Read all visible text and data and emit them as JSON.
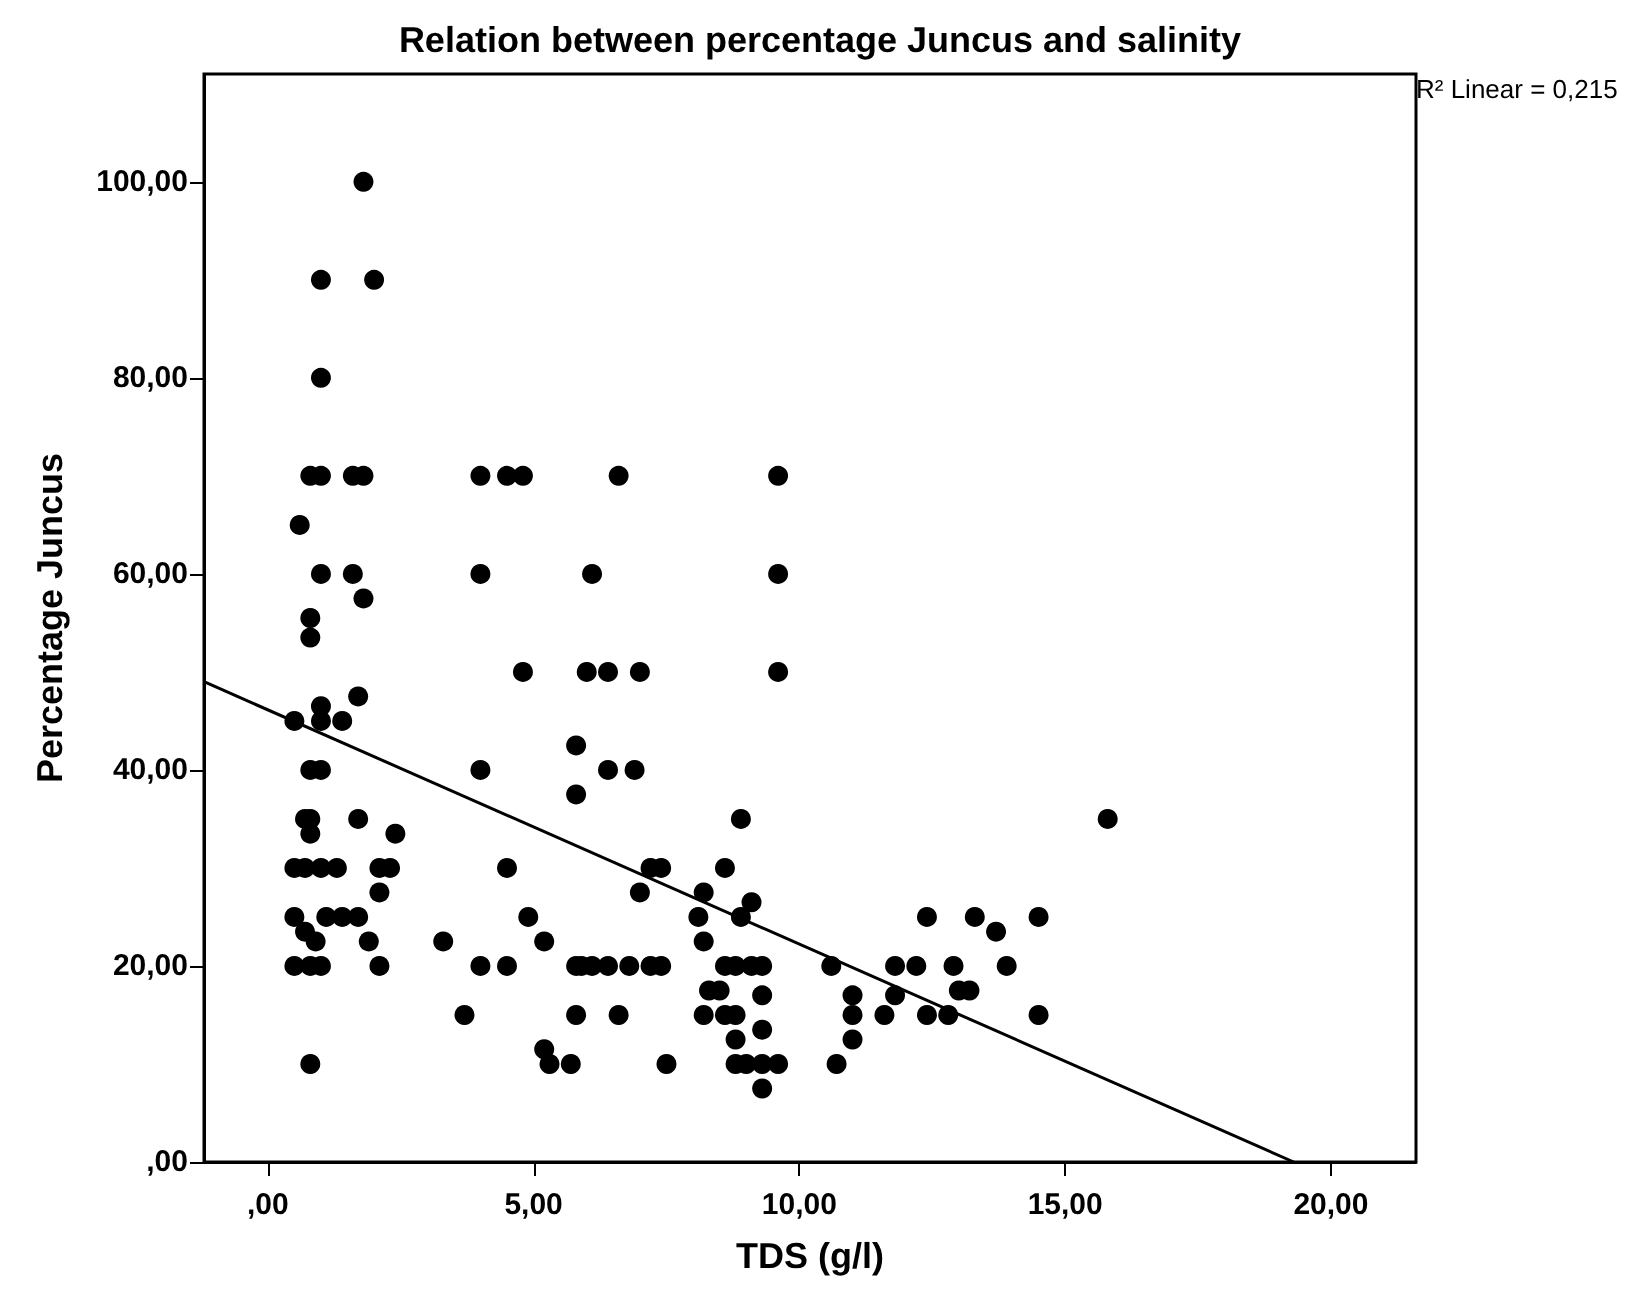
{
  "chart_data": {
    "type": "scatter",
    "title": "Relation between percentage Juncus and salinity",
    "xlabel": "TDS (g/l)",
    "ylabel": "Percentage Juncus",
    "annotations": [
      "R² Linear = 0,215"
    ],
    "xlim": [
      -1.2,
      21.6
    ],
    "ylim": [
      0,
      111
    ],
    "xticks": [
      {
        "value": 0,
        "label": ",00"
      },
      {
        "value": 5,
        "label": "5,00"
      },
      {
        "value": 10,
        "label": "10,00"
      },
      {
        "value": 15,
        "label": "15,00"
      },
      {
        "value": 20,
        "label": "20,00"
      }
    ],
    "yticks": [
      {
        "value": 0,
        "label": ",00"
      },
      {
        "value": 20,
        "label": "20,00"
      },
      {
        "value": 40,
        "label": "40,00"
      },
      {
        "value": 60,
        "label": "60,00"
      },
      {
        "value": 80,
        "label": "80,00"
      },
      {
        "value": 100,
        "label": "100,00"
      }
    ],
    "grid": false,
    "series": [
      {
        "color": "#000000",
        "marker": "circle",
        "x": [
          1.8,
          1.0,
          2.0,
          1.0,
          0.8,
          1.0,
          1.6,
          1.8,
          4.0,
          4.5,
          4.8,
          6.6,
          9.6,
          0.6,
          1.0,
          1.6,
          4.0,
          6.1,
          9.6,
          1.8,
          0.8,
          0.8,
          4.8,
          6.0,
          6.4,
          7.0,
          9.6,
          1.0,
          1.7,
          0.5,
          1.0,
          1.4,
          5.8,
          5.8,
          6.4,
          6.9,
          0.8,
          1.0,
          4.0,
          0.7,
          0.8,
          1.7,
          0.8,
          2.4,
          8.9,
          0.5,
          0.7,
          1.0,
          1.3,
          2.1,
          2.3,
          4.5,
          7.2,
          7.4,
          8.6,
          2.1,
          7.0,
          8.2,
          9.1,
          8.1,
          8.9,
          8.2,
          12.4,
          0.5,
          1.1,
          1.4,
          1.7,
          4.9,
          0.7,
          0.9,
          1.9,
          3.3,
          5.2,
          0.5,
          0.8,
          1.0,
          2.1,
          4.0,
          4.5,
          5.8,
          5.9,
          6.1,
          6.4,
          6.8,
          7.2,
          7.4,
          8.6,
          8.8,
          9.1,
          9.3,
          10.6,
          11.8,
          12.2,
          13.3,
          14.5,
          13.7,
          12.9,
          13.9,
          13.0,
          13.2,
          12.8,
          14.5,
          15.8,
          8.3,
          8.5,
          9.3,
          11.0,
          11.8,
          6.6,
          8.2,
          8.6,
          8.8,
          11.0,
          11.6,
          12.4,
          3.7,
          5.8,
          8.8,
          11.0,
          9.3,
          7.5,
          8.8,
          9.0,
          9.3,
          9.6,
          10.7,
          0.8,
          5.2,
          5.3,
          5.7,
          9.3
        ],
        "values": [
          100,
          90,
          90,
          80,
          70,
          70,
          70,
          70,
          70,
          70,
          70,
          70,
          70,
          65,
          60,
          60,
          60,
          60,
          60,
          57.5,
          55.5,
          53.5,
          50,
          50,
          50,
          50,
          50,
          46.5,
          47.5,
          45,
          45,
          45,
          42.5,
          37.5,
          40,
          40,
          40,
          40,
          40,
          35,
          35,
          35,
          33.5,
          33.5,
          35,
          30,
          30,
          30,
          30,
          30,
          30,
          30,
          30,
          30,
          30,
          27.5,
          27.5,
          27.5,
          26.5,
          25,
          25,
          22.5,
          25,
          25,
          25,
          25,
          25,
          25,
          23.5,
          22.5,
          22.5,
          22.5,
          22.5,
          20,
          20,
          20,
          20,
          20,
          20,
          20,
          20,
          20,
          20,
          20,
          20,
          20,
          20,
          20,
          20,
          20,
          20,
          20,
          20,
          25,
          25,
          23.5,
          20,
          20,
          17.5,
          17.5,
          15,
          15,
          35,
          17.5,
          17.5,
          17,
          17,
          17,
          15,
          15,
          15,
          15,
          15,
          15,
          15,
          15,
          15,
          12.5,
          12.5,
          13.5,
          10,
          10,
          10,
          10,
          10,
          10,
          10,
          11.5,
          10,
          10,
          7.5
        ]
      },
      {
        "type": "line",
        "color": "#000000",
        "marker": "none",
        "line_style": "solid",
        "x": [
          -1.2,
          19.3
        ],
        "values": [
          49,
          0
        ]
      }
    ]
  }
}
